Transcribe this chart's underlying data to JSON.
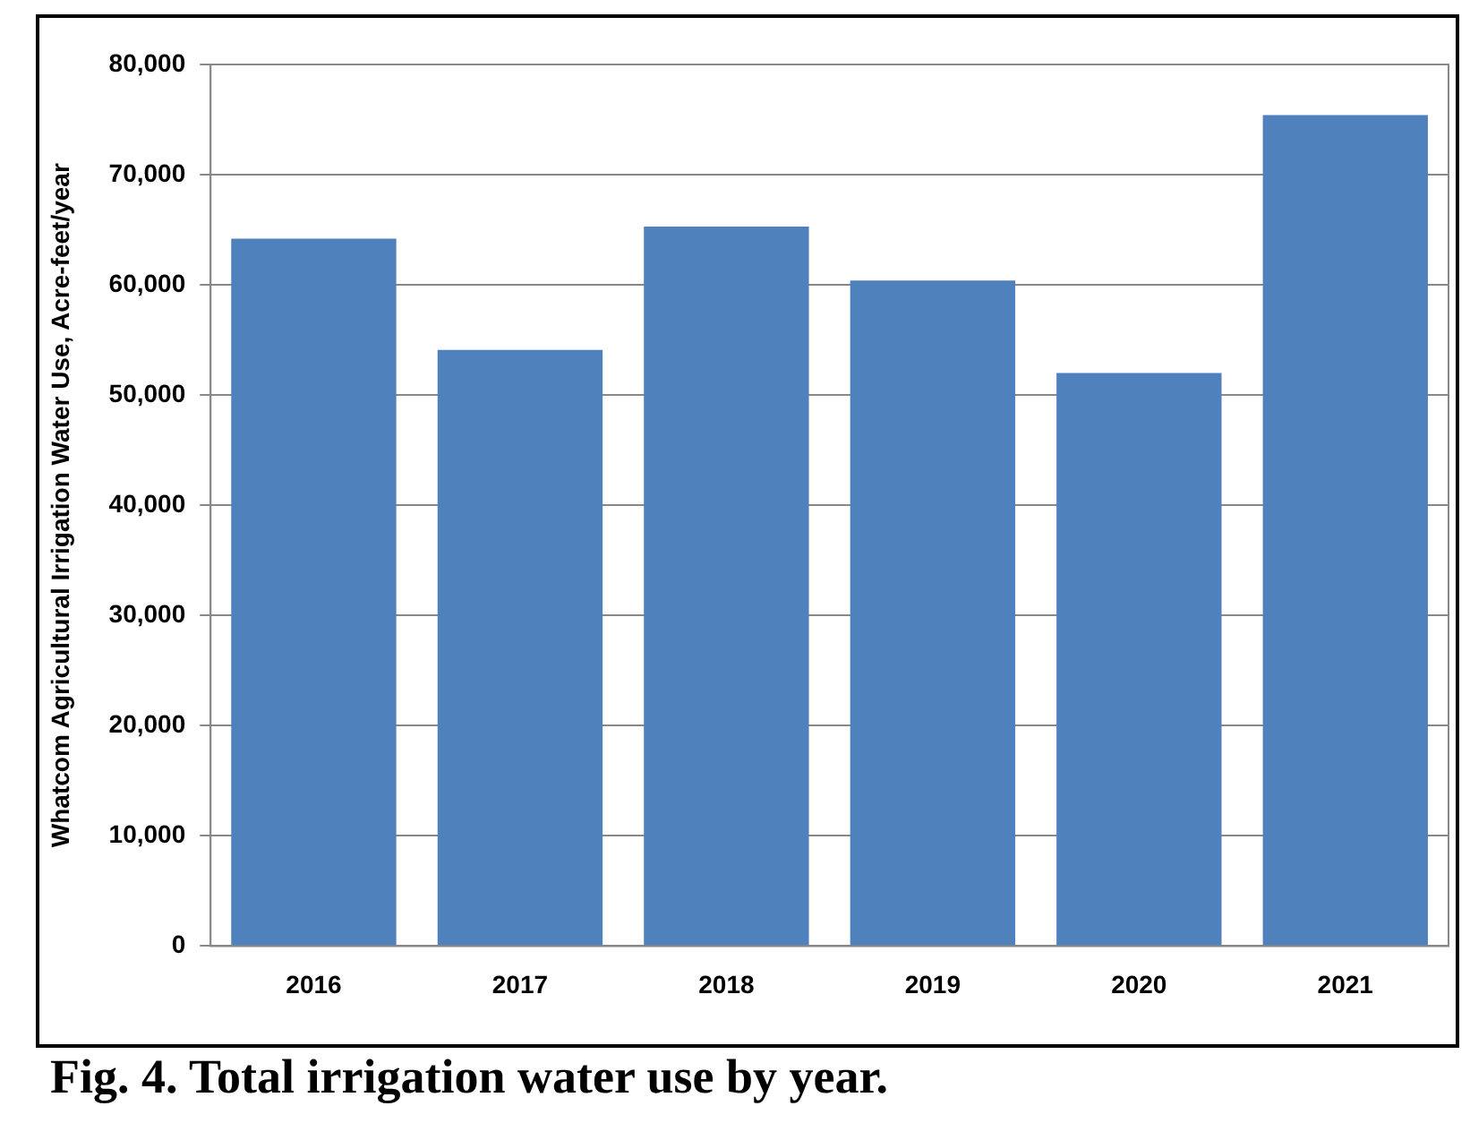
{
  "chart_data": {
    "type": "bar",
    "ylabel": "Whatcom Agricultural Irrigation Water Use, Acre-feet/year",
    "categories": [
      "2016",
      "2017",
      "2018",
      "2019",
      "2020",
      "2021"
    ],
    "values": [
      64200,
      54100,
      65300,
      60400,
      52000,
      75400
    ],
    "color": "#4f81bd",
    "ylim": [
      0,
      80000
    ],
    "yticks": [
      {
        "value": 0,
        "label": "0"
      },
      {
        "value": 10000,
        "label": "10,000"
      },
      {
        "value": 20000,
        "label": "20,000"
      },
      {
        "value": 30000,
        "label": "30,000"
      },
      {
        "value": 40000,
        "label": "40,000"
      },
      {
        "value": 50000,
        "label": "50,000"
      },
      {
        "value": 60000,
        "label": "60,000"
      },
      {
        "value": 70000,
        "label": "70,000"
      },
      {
        "value": 80000,
        "label": "80,000"
      }
    ],
    "grid": "y",
    "legend": false,
    "annotations": [
      "Fig. 4. Total irrigation water use by year."
    ]
  }
}
